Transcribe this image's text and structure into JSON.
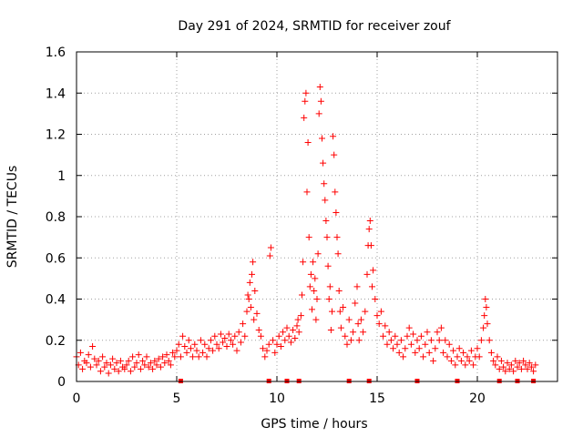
{
  "chart_data": {
    "type": "scatter",
    "title": "Day 291 of 2024, SRMTID for receiver zouf",
    "xlabel": "GPS time / hours",
    "ylabel": "SRMTID / TECUs",
    "xlim": [
      0,
      24
    ],
    "ylim": [
      0,
      1.6
    ],
    "xticks": [
      0,
      5,
      10,
      15,
      20
    ],
    "xtick_labels": [
      "0",
      "5",
      "10",
      "15",
      "20"
    ],
    "yticks": [
      0,
      0.2,
      0.4,
      0.6,
      0.8,
      1.0,
      1.2,
      1.4,
      1.6
    ],
    "ytick_labels": [
      "0",
      "0.2",
      "0.4",
      "0.6",
      "0.8",
      "1",
      "1.2",
      "1.4",
      "1.6"
    ],
    "grid": true,
    "marker": "plus",
    "color": "#ff0000",
    "axis_markers_x": [
      5.2,
      9.6,
      10.5,
      11.1,
      13.6,
      14.6,
      17.0,
      19.0,
      21.1,
      22.0,
      22.8
    ],
    "series": [
      {
        "name": "SRMTID",
        "points": [
          [
            0.0,
            0.12
          ],
          [
            0.1,
            0.08
          ],
          [
            0.2,
            0.14
          ],
          [
            0.3,
            0.06
          ],
          [
            0.4,
            0.1
          ],
          [
            0.5,
            0.09
          ],
          [
            0.6,
            0.13
          ],
          [
            0.7,
            0.07
          ],
          [
            0.8,
            0.17
          ],
          [
            0.9,
            0.11
          ],
          [
            1.0,
            0.08
          ],
          [
            1.1,
            0.1
          ],
          [
            1.2,
            0.05
          ],
          [
            1.3,
            0.12
          ],
          [
            1.4,
            0.07
          ],
          [
            1.5,
            0.09
          ],
          [
            1.6,
            0.04
          ],
          [
            1.7,
            0.08
          ],
          [
            1.8,
            0.11
          ],
          [
            1.9,
            0.06
          ],
          [
            2.0,
            0.09
          ],
          [
            2.1,
            0.05
          ],
          [
            2.2,
            0.1
          ],
          [
            2.3,
            0.07
          ],
          [
            2.4,
            0.06
          ],
          [
            2.5,
            0.08
          ],
          [
            2.6,
            0.1
          ],
          [
            2.7,
            0.05
          ],
          [
            2.8,
            0.12
          ],
          [
            2.9,
            0.07
          ],
          [
            3.0,
            0.09
          ],
          [
            3.1,
            0.13
          ],
          [
            3.2,
            0.06
          ],
          [
            3.3,
            0.1
          ],
          [
            3.4,
            0.08
          ],
          [
            3.5,
            0.12
          ],
          [
            3.6,
            0.07
          ],
          [
            3.7,
            0.09
          ],
          [
            3.8,
            0.06
          ],
          [
            3.9,
            0.1
          ],
          [
            4.0,
            0.08
          ],
          [
            4.1,
            0.11
          ],
          [
            4.2,
            0.07
          ],
          [
            4.3,
            0.12
          ],
          [
            4.4,
            0.09
          ],
          [
            4.5,
            0.13
          ],
          [
            4.6,
            0.1
          ],
          [
            4.7,
            0.08
          ],
          [
            4.8,
            0.14
          ],
          [
            4.9,
            0.12
          ],
          [
            5.0,
            0.15
          ],
          [
            5.1,
            0.18
          ],
          [
            5.2,
            0.12
          ],
          [
            5.3,
            0.22
          ],
          [
            5.4,
            0.17
          ],
          [
            5.5,
            0.14
          ],
          [
            5.6,
            0.2
          ],
          [
            5.7,
            0.16
          ],
          [
            5.8,
            0.12
          ],
          [
            5.9,
            0.18
          ],
          [
            6.0,
            0.15
          ],
          [
            6.1,
            0.12
          ],
          [
            6.2,
            0.2
          ],
          [
            6.3,
            0.14
          ],
          [
            6.4,
            0.18
          ],
          [
            6.5,
            0.12
          ],
          [
            6.6,
            0.16
          ],
          [
            6.7,
            0.2
          ],
          [
            6.8,
            0.15
          ],
          [
            6.9,
            0.22
          ],
          [
            7.0,
            0.18
          ],
          [
            7.1,
            0.16
          ],
          [
            7.2,
            0.23
          ],
          [
            7.3,
            0.19
          ],
          [
            7.4,
            0.21
          ],
          [
            7.5,
            0.17
          ],
          [
            7.6,
            0.23
          ],
          [
            7.7,
            0.2
          ],
          [
            7.8,
            0.18
          ],
          [
            7.9,
            0.22
          ],
          [
            8.0,
            0.15
          ],
          [
            8.1,
            0.24
          ],
          [
            8.2,
            0.19
          ],
          [
            8.3,
            0.28
          ],
          [
            8.4,
            0.22
          ],
          [
            8.5,
            0.34
          ],
          [
            8.55,
            0.42
          ],
          [
            8.6,
            0.4
          ],
          [
            8.65,
            0.48
          ],
          [
            8.7,
            0.36
          ],
          [
            8.75,
            0.52
          ],
          [
            8.8,
            0.58
          ],
          [
            8.85,
            0.3
          ],
          [
            8.9,
            0.44
          ],
          [
            9.0,
            0.33
          ],
          [
            9.1,
            0.25
          ],
          [
            9.2,
            0.22
          ],
          [
            9.3,
            0.16
          ],
          [
            9.4,
            0.12
          ],
          [
            9.5,
            0.15
          ],
          [
            9.6,
            0.18
          ],
          [
            9.65,
            0.61
          ],
          [
            9.7,
            0.65
          ],
          [
            9.8,
            0.2
          ],
          [
            9.9,
            0.14
          ],
          [
            10.0,
            0.18
          ],
          [
            10.1,
            0.22
          ],
          [
            10.2,
            0.17
          ],
          [
            10.3,
            0.24
          ],
          [
            10.4,
            0.2
          ],
          [
            10.5,
            0.26
          ],
          [
            10.6,
            0.22
          ],
          [
            10.7,
            0.19
          ],
          [
            10.8,
            0.25
          ],
          [
            10.9,
            0.21
          ],
          [
            11.0,
            0.27
          ],
          [
            11.05,
            0.3
          ],
          [
            11.1,
            0.24
          ],
          [
            11.2,
            0.32
          ],
          [
            11.25,
            0.42
          ],
          [
            11.3,
            0.58
          ],
          [
            11.35,
            1.28
          ],
          [
            11.4,
            1.36
          ],
          [
            11.45,
            1.4
          ],
          [
            11.5,
            0.92
          ],
          [
            11.55,
            1.16
          ],
          [
            11.6,
            0.7
          ],
          [
            11.65,
            0.46
          ],
          [
            11.7,
            0.52
          ],
          [
            11.75,
            0.35
          ],
          [
            11.8,
            0.58
          ],
          [
            11.85,
            0.44
          ],
          [
            11.9,
            0.5
          ],
          [
            11.95,
            0.3
          ],
          [
            12.0,
            0.4
          ],
          [
            12.05,
            0.62
          ],
          [
            12.1,
            1.3
          ],
          [
            12.15,
            1.43
          ],
          [
            12.2,
            1.36
          ],
          [
            12.25,
            1.18
          ],
          [
            12.3,
            1.06
          ],
          [
            12.35,
            0.96
          ],
          [
            12.4,
            0.88
          ],
          [
            12.45,
            0.78
          ],
          [
            12.5,
            0.7
          ],
          [
            12.55,
            0.56
          ],
          [
            12.6,
            0.4
          ],
          [
            12.65,
            0.46
          ],
          [
            12.7,
            0.25
          ],
          [
            12.75,
            0.34
          ],
          [
            12.8,
            1.19
          ],
          [
            12.85,
            1.1
          ],
          [
            12.9,
            0.92
          ],
          [
            12.95,
            0.82
          ],
          [
            13.0,
            0.7
          ],
          [
            13.05,
            0.62
          ],
          [
            13.1,
            0.44
          ],
          [
            13.15,
            0.34
          ],
          [
            13.2,
            0.26
          ],
          [
            13.3,
            0.36
          ],
          [
            13.4,
            0.22
          ],
          [
            13.5,
            0.18
          ],
          [
            13.6,
            0.3
          ],
          [
            13.7,
            0.2
          ],
          [
            13.8,
            0.24
          ],
          [
            13.9,
            0.38
          ],
          [
            14.0,
            0.46
          ],
          [
            14.05,
            0.28
          ],
          [
            14.1,
            0.2
          ],
          [
            14.2,
            0.3
          ],
          [
            14.3,
            0.24
          ],
          [
            14.4,
            0.34
          ],
          [
            14.5,
            0.52
          ],
          [
            14.55,
            0.66
          ],
          [
            14.6,
            0.74
          ],
          [
            14.65,
            0.78
          ],
          [
            14.7,
            0.66
          ],
          [
            14.75,
            0.46
          ],
          [
            14.8,
            0.54
          ],
          [
            14.9,
            0.4
          ],
          [
            15.0,
            0.32
          ],
          [
            15.1,
            0.28
          ],
          [
            15.2,
            0.34
          ],
          [
            15.3,
            0.22
          ],
          [
            15.4,
            0.27
          ],
          [
            15.5,
            0.18
          ],
          [
            15.6,
            0.24
          ],
          [
            15.7,
            0.2
          ],
          [
            15.8,
            0.16
          ],
          [
            15.9,
            0.22
          ],
          [
            16.0,
            0.18
          ],
          [
            16.1,
            0.14
          ],
          [
            16.2,
            0.2
          ],
          [
            16.3,
            0.12
          ],
          [
            16.4,
            0.16
          ],
          [
            16.5,
            0.22
          ],
          [
            16.6,
            0.26
          ],
          [
            16.7,
            0.18
          ],
          [
            16.8,
            0.23
          ],
          [
            16.9,
            0.14
          ],
          [
            17.0,
            0.2
          ],
          [
            17.1,
            0.16
          ],
          [
            17.2,
            0.22
          ],
          [
            17.3,
            0.12
          ],
          [
            17.4,
            0.18
          ],
          [
            17.5,
            0.24
          ],
          [
            17.6,
            0.14
          ],
          [
            17.7,
            0.2
          ],
          [
            17.8,
            0.1
          ],
          [
            17.9,
            0.16
          ],
          [
            18.0,
            0.24
          ],
          [
            18.1,
            0.2
          ],
          [
            18.2,
            0.26
          ],
          [
            18.3,
            0.14
          ],
          [
            18.4,
            0.2
          ],
          [
            18.5,
            0.12
          ],
          [
            18.6,
            0.18
          ],
          [
            18.7,
            0.1
          ],
          [
            18.8,
            0.15
          ],
          [
            18.9,
            0.08
          ],
          [
            19.0,
            0.12
          ],
          [
            19.1,
            0.16
          ],
          [
            19.2,
            0.1
          ],
          [
            19.3,
            0.14
          ],
          [
            19.4,
            0.08
          ],
          [
            19.5,
            0.12
          ],
          [
            19.6,
            0.1
          ],
          [
            19.7,
            0.15
          ],
          [
            19.8,
            0.08
          ],
          [
            19.9,
            0.12
          ],
          [
            20.0,
            0.16
          ],
          [
            20.1,
            0.12
          ],
          [
            20.2,
            0.2
          ],
          [
            20.3,
            0.26
          ],
          [
            20.35,
            0.32
          ],
          [
            20.4,
            0.4
          ],
          [
            20.45,
            0.36
          ],
          [
            20.5,
            0.28
          ],
          [
            20.6,
            0.2
          ],
          [
            20.7,
            0.14
          ],
          [
            20.8,
            0.1
          ],
          [
            20.9,
            0.08
          ],
          [
            21.0,
            0.12
          ],
          [
            21.1,
            0.06
          ],
          [
            21.2,
            0.1
          ],
          [
            21.3,
            0.07
          ],
          [
            21.4,
            0.05
          ],
          [
            21.5,
            0.09
          ],
          [
            21.6,
            0.06
          ],
          [
            21.7,
            0.08
          ],
          [
            21.8,
            0.05
          ],
          [
            21.9,
            0.1
          ],
          [
            22.0,
            0.07
          ],
          [
            22.1,
            0.09
          ],
          [
            22.2,
            0.06
          ],
          [
            22.3,
            0.1
          ],
          [
            22.4,
            0.08
          ],
          [
            22.5,
            0.06
          ],
          [
            22.6,
            0.09
          ],
          [
            22.7,
            0.07
          ],
          [
            22.8,
            0.05
          ],
          [
            22.9,
            0.08
          ]
        ]
      }
    ]
  }
}
